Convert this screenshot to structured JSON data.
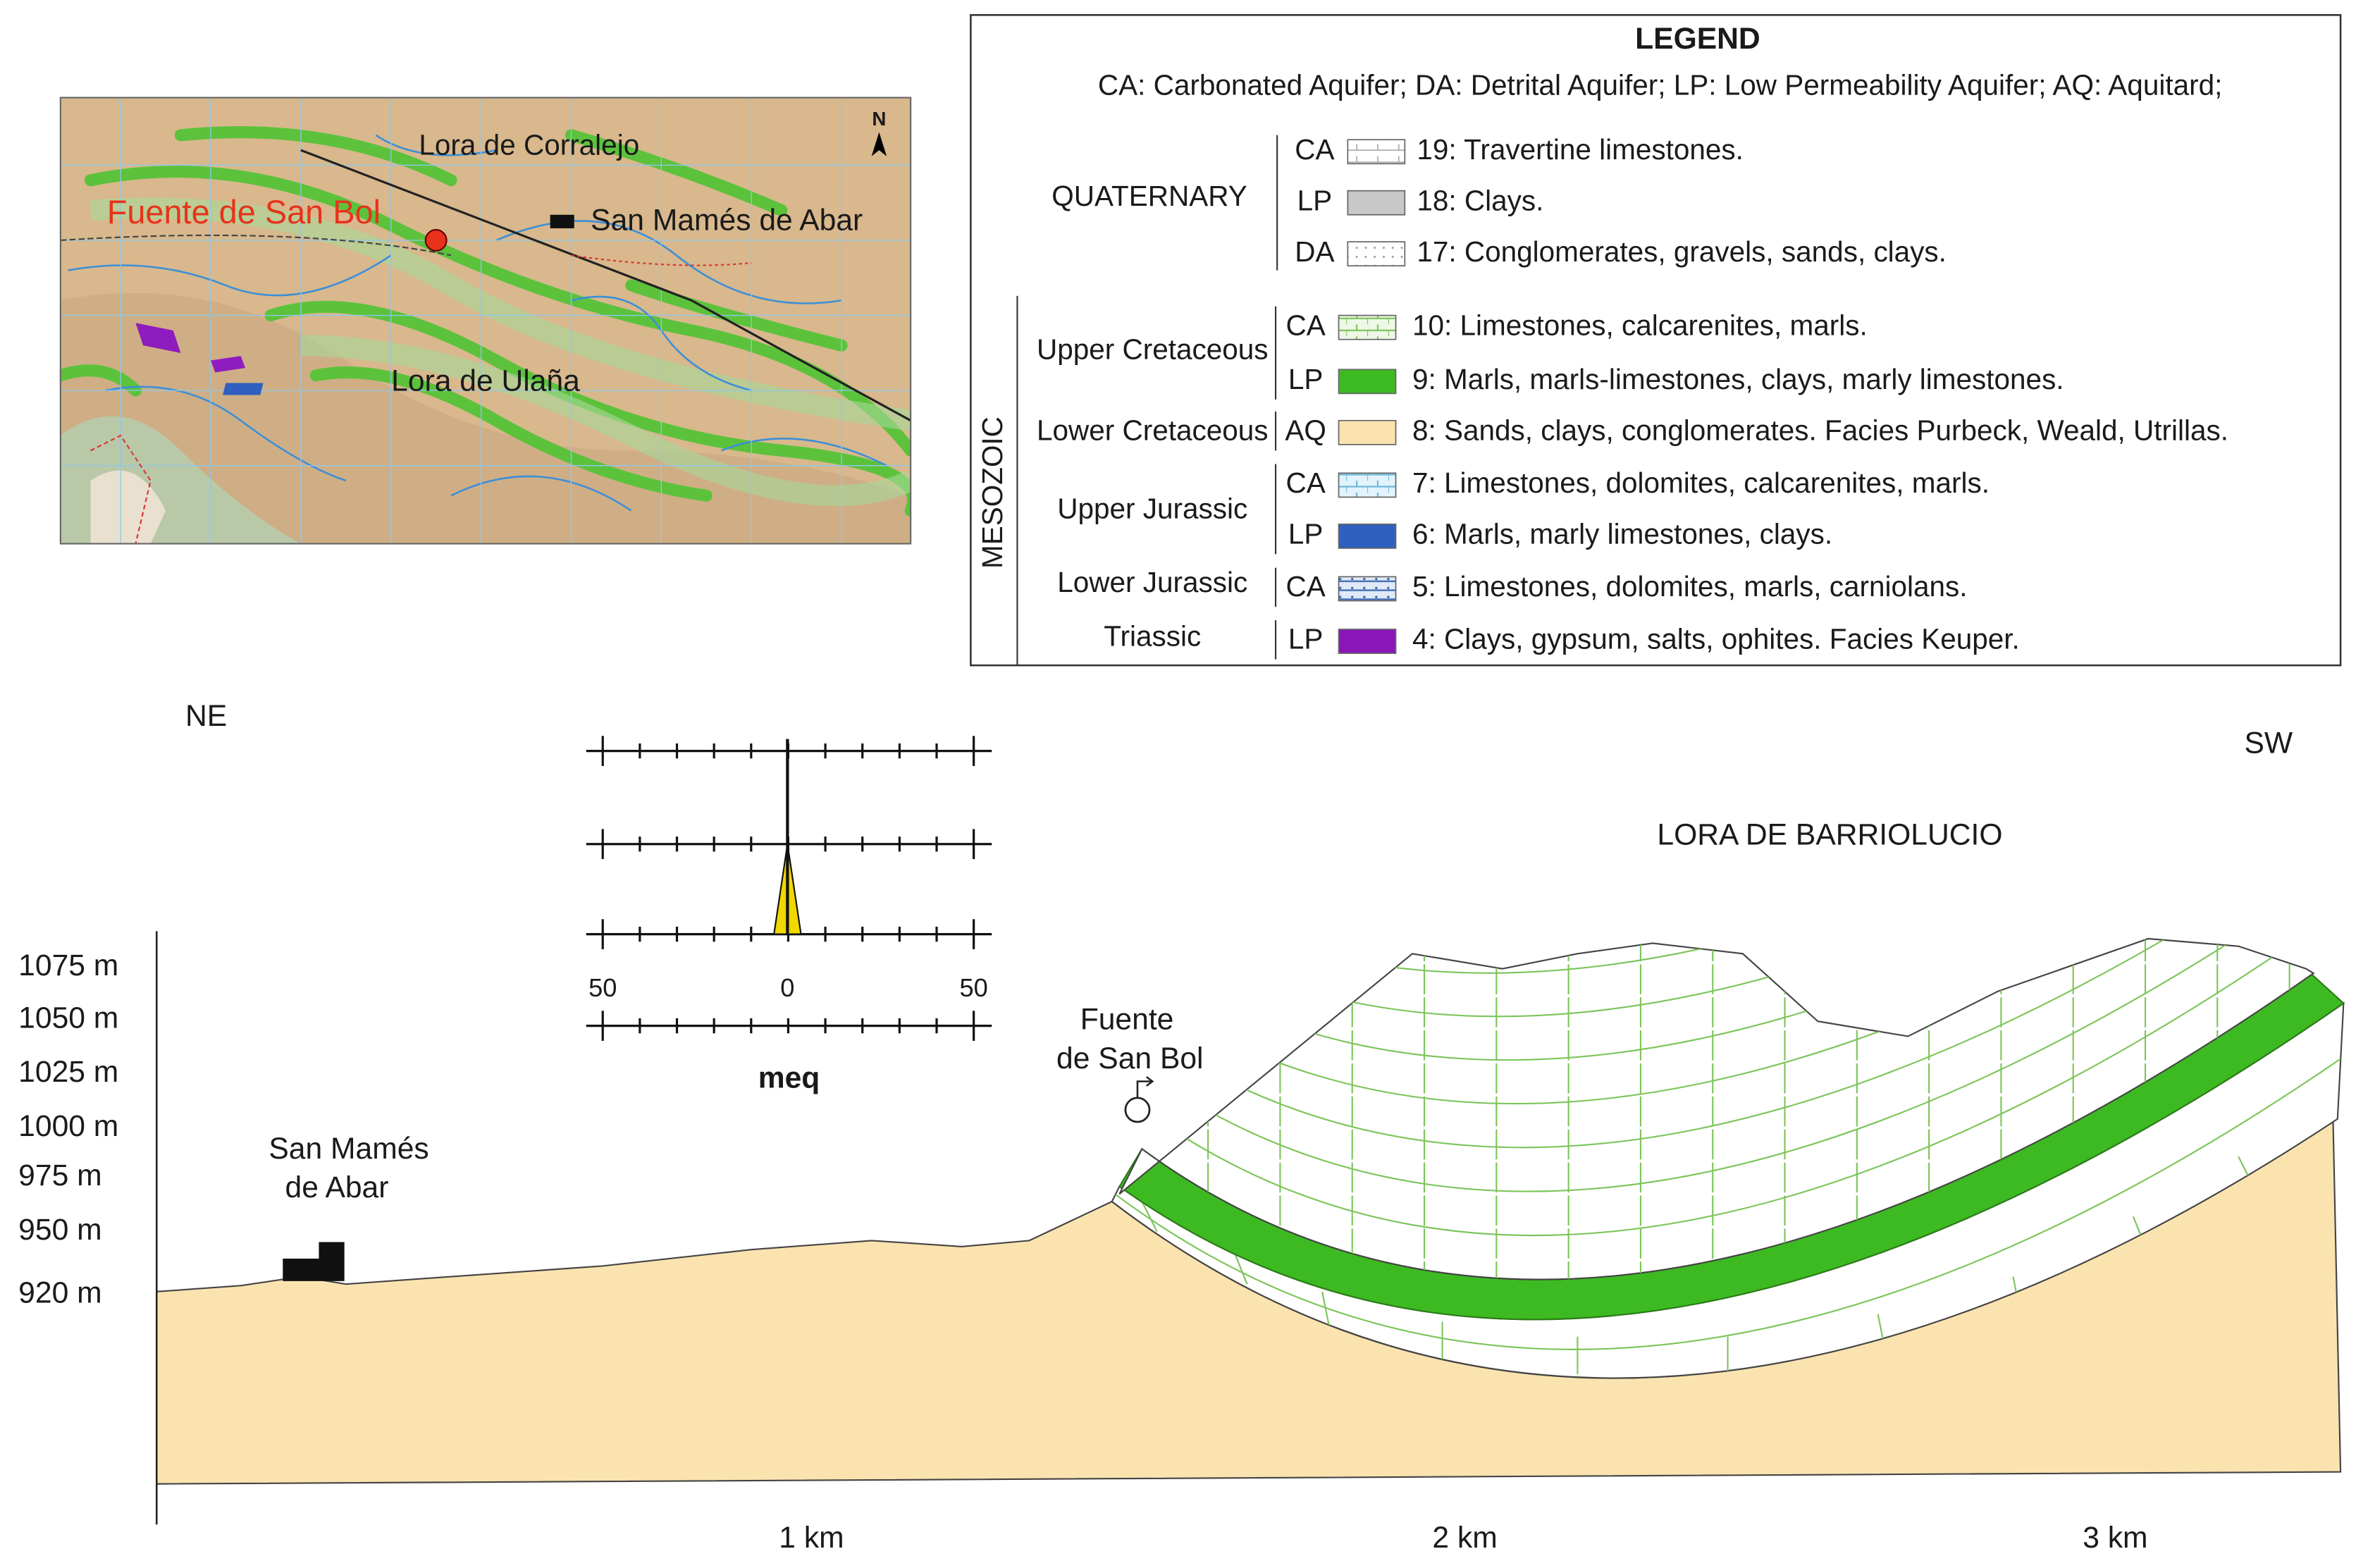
{
  "map": {
    "north": "N",
    "labels": {
      "ridge_north": "Lora de Corralejo",
      "spring": "Fuente de San Bol",
      "town": "San Mamés de Abar",
      "ridge_south": "Lora de Ulaña"
    }
  },
  "legend": {
    "title": "LEGEND",
    "note": "CA: Carbonated Aquifer; DA: Detrital Aquifer; LP: Low Permeability Aquifer; AQ: Aquitard;",
    "quaternary": {
      "label": "QUATERNARY",
      "rows": [
        {
          "code": "CA",
          "text": "19: Travertine limestones."
        },
        {
          "code": "LP",
          "text": "18: Clays."
        },
        {
          "code": "DA",
          "text": "17: Conglomerates, gravels, sands, clays."
        }
      ]
    },
    "mesozoic": {
      "label": "MESOZOIC",
      "groups": [
        {
          "label": "Upper Cretaceous",
          "rows": [
            {
              "code": "CA",
              "text": "10: Limestones, calcarenites, marls."
            },
            {
              "code": "LP",
              "text": "9: Marls, marls-limestones, clays, marly limestones."
            }
          ]
        },
        {
          "label": "Lower Cretaceous",
          "rows": [
            {
              "code": "AQ",
              "text": "8: Sands, clays, conglomerates. Facies Purbeck, Weald, Utrillas."
            }
          ]
        },
        {
          "label": "Upper Jurassic",
          "rows": [
            {
              "code": "CA",
              "text": "7: Limestones, dolomites, calcarenites, marls."
            },
            {
              "code": "LP",
              "text": "6: Marls, marly limestones, clays."
            }
          ]
        },
        {
          "label": "Lower Jurassic",
          "rows": [
            {
              "code": "CA",
              "text": "5: Limestones, dolomites, marls, carniolans."
            }
          ]
        },
        {
          "label": "Triassic",
          "rows": [
            {
              "code": "LP",
              "text": "4: Clays, gypsum, salts, ophites. Facies Keuper."
            }
          ]
        }
      ]
    }
  },
  "section": {
    "left_direction": "NE",
    "right_direction": "SW",
    "ridge": "LORA DE BARRIOLUCIO",
    "spring": [
      "Fuente",
      "de San Bol"
    ],
    "town": [
      "San Mamés",
      "de Abar"
    ],
    "elevations": [
      "1075 m",
      "1050 m",
      "1025 m",
      "1000 m",
      "975 m",
      "950 m",
      "920 m"
    ],
    "distances": [
      "1 km",
      "2 km",
      "3 km"
    ],
    "stiff": {
      "scale": [
        "50",
        "0",
        "50"
      ],
      "unit": "meq"
    }
  }
}
